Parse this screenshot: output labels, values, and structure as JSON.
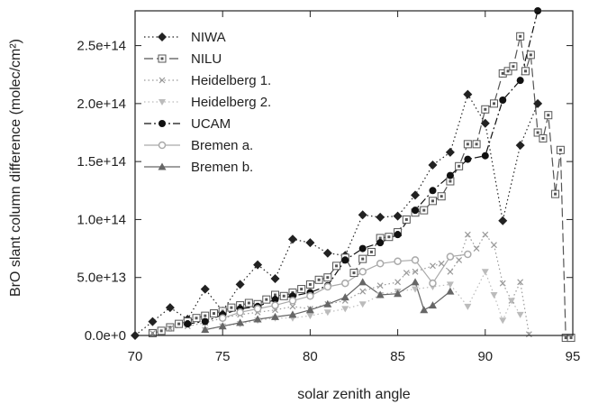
{
  "chart_data": {
    "type": "line",
    "xlabel": "solar zenith angle",
    "ylabel": "BrO slant column difference (molec/cm²)",
    "xlim": [
      70,
      95
    ],
    "ylim": [
      0,
      280000000000000.0
    ],
    "xticks": [
      70,
      75,
      80,
      85,
      90,
      95
    ],
    "xtick_labels": [
      "70",
      "75",
      "80",
      "85",
      "90",
      "95"
    ],
    "yticks": [
      0,
      50000000000000.0,
      100000000000000.0,
      150000000000000.0,
      200000000000000.0,
      250000000000000.0
    ],
    "ytick_labels": [
      "0.0e+0",
      "5.0e+13",
      "1.0e+14",
      "1.5e+14",
      "2.0e+14",
      "2.5e+14"
    ],
    "grid": false,
    "legend_position": "top-left",
    "series": [
      {
        "name": "NIWA",
        "color": "#222222",
        "marker": "diamond",
        "line": "dotted",
        "x": [
          70.0,
          71.0,
          72.0,
          73.0,
          74.0,
          75.0,
          76.0,
          77.0,
          78.0,
          79.0,
          80.0,
          81.0,
          82.0,
          83.0,
          84.0,
          85.0,
          86.0,
          87.0,
          88.0,
          89.0,
          90.0,
          91.0,
          92.0,
          93.0
        ],
        "y": [
          0.0,
          12000000000000.0,
          24000000000000.0,
          14000000000000.0,
          40000000000000.0,
          21000000000000.0,
          44000000000000.0,
          61000000000000.0,
          49000000000000.0,
          83000000000000.0,
          80000000000000.0,
          71000000000000.0,
          69000000000000.0,
          104000000000000.0,
          102000000000000.0,
          103000000000000.0,
          121000000000000.0,
          147000000000000.0,
          158000000000000.0,
          208000000000000.0,
          183000000000000.0,
          99000000000000.0,
          164000000000000.0,
          200000000000000.0
        ]
      },
      {
        "name": "NILU",
        "color": "#555555",
        "marker": "dotted-square",
        "line": "long-dash",
        "x": [
          71.0,
          71.5,
          72.0,
          72.5,
          73.0,
          73.5,
          74.0,
          74.5,
          75.0,
          75.5,
          76.0,
          76.5,
          77.0,
          77.5,
          78.0,
          78.5,
          79.0,
          79.5,
          80.0,
          80.5,
          81.0,
          81.5,
          82.0,
          82.5,
          83.0,
          83.5,
          84.0,
          84.5,
          85.0,
          85.5,
          86.0,
          86.5,
          87.0,
          87.5,
          88.0,
          88.5,
          89.0,
          89.5,
          90.0,
          90.5,
          91.0,
          91.3,
          91.6,
          92.0,
          92.3,
          92.6,
          93.0,
          93.3,
          93.6,
          94.0,
          94.3,
          94.6,
          94.9
        ],
        "y": [
          2000000000000.0,
          4000000000000.0,
          7000000000000.0,
          10000000000000.0,
          12000000000000.0,
          15000000000000.0,
          17000000000000.0,
          19000000000000.0,
          21000000000000.0,
          24000000000000.0,
          26000000000000.0,
          28000000000000.0,
          27000000000000.0,
          31000000000000.0,
          35000000000000.0,
          34000000000000.0,
          37000000000000.0,
          40000000000000.0,
          44000000000000.0,
          48000000000000.0,
          50000000000000.0,
          60000000000000.0,
          67000000000000.0,
          54000000000000.0,
          66000000000000.0,
          72000000000000.0,
          84000000000000.0,
          85000000000000.0,
          89000000000000.0,
          100000000000000.0,
          106000000000000.0,
          108000000000000.0,
          116000000000000.0,
          120000000000000.0,
          133000000000000.0,
          146000000000000.0,
          165000000000000.0,
          165000000000000.0,
          195000000000000.0,
          200000000000000.0,
          226000000000000.0,
          228000000000000.0,
          232000000000000.0,
          258000000000000.0,
          228000000000000.0,
          242000000000000.0,
          175000000000000.0,
          170000000000000.0,
          190000000000000.0,
          122000000000000.0,
          160000000000000.0,
          -2000000000000.0,
          -2000000000000.0
        ]
      },
      {
        "name": "Heidelberg 1.",
        "color": "#999999",
        "marker": "x",
        "line": "dotted",
        "x": [
          71.0,
          72.0,
          73.0,
          74.0,
          75.0,
          76.0,
          77.0,
          78.0,
          79.0,
          80.0,
          81.0,
          82.0,
          83.0,
          84.0,
          85.0,
          85.5,
          86.0,
          87.0,
          87.5,
          88.0,
          88.5,
          89.0,
          89.5,
          90.0,
          90.5,
          91.0,
          91.5,
          92.0,
          92.5
        ],
        "y": [
          2000000000000.0,
          6000000000000.0,
          8000000000000.0,
          11000000000000.0,
          15000000000000.0,
          18000000000000.0,
          20000000000000.0,
          22000000000000.0,
          25000000000000.0,
          23000000000000.0,
          27000000000000.0,
          30000000000000.0,
          38000000000000.0,
          43000000000000.0,
          46000000000000.0,
          54000000000000.0,
          55000000000000.0,
          60000000000000.0,
          62000000000000.0,
          55000000000000.0,
          65000000000000.0,
          87000000000000.0,
          75000000000000.0,
          87000000000000.0,
          78000000000000.0,
          45000000000000.0,
          30000000000000.0,
          46000000000000.0,
          1000000000000.0
        ]
      },
      {
        "name": "Heidelberg 2.",
        "color": "#bbbbbb",
        "marker": "triangle-down",
        "line": "dotted",
        "x": [
          74.0,
          75.0,
          76.0,
          77.0,
          78.0,
          79.0,
          80.0,
          81.0,
          82.0,
          83.0,
          84.0,
          85.0,
          86.0,
          87.0,
          88.0,
          89.0,
          90.0,
          90.5,
          91.0,
          91.5,
          92.0
        ],
        "y": [
          5000000000000.0,
          8000000000000.0,
          10000000000000.0,
          13000000000000.0,
          15000000000000.0,
          15000000000000.0,
          17000000000000.0,
          20000000000000.0,
          23000000000000.0,
          27000000000000.0,
          35000000000000.0,
          38000000000000.0,
          40000000000000.0,
          42000000000000.0,
          44000000000000.0,
          25000000000000.0,
          55000000000000.0,
          35000000000000.0,
          13000000000000.0,
          30000000000000.0,
          18000000000000.0
        ]
      },
      {
        "name": "UCAM",
        "color": "#111111",
        "marker": "circle",
        "line": "dash-dot",
        "x": [
          73.0,
          74.0,
          75.0,
          76.0,
          77.0,
          78.0,
          79.0,
          80.0,
          81.0,
          82.0,
          83.0,
          84.0,
          85.0,
          86.0,
          87.0,
          88.0,
          89.0,
          90.0,
          91.0,
          92.0,
          93.0
        ],
        "y": [
          10000000000000.0,
          12000000000000.0,
          18000000000000.0,
          23000000000000.0,
          25000000000000.0,
          31000000000000.0,
          34000000000000.0,
          37000000000000.0,
          43000000000000.0,
          65000000000000.0,
          75000000000000.0,
          80000000000000.0,
          87000000000000.0,
          108000000000000.0,
          125000000000000.0,
          138000000000000.0,
          152000000000000.0,
          155000000000000.0,
          203000000000000.0,
          220000000000000.0,
          280000000000000.0
        ]
      },
      {
        "name": "Bremen a.",
        "color": "#aaaaaa",
        "marker": "open-circle",
        "line": "solid",
        "x": [
          75.0,
          76.0,
          77.0,
          78.0,
          79.0,
          80.0,
          81.0,
          82.0,
          83.0,
          84.0,
          85.0,
          86.0,
          87.0,
          88.0,
          89.0
        ],
        "y": [
          15000000000000.0,
          20000000000000.0,
          23000000000000.0,
          26000000000000.0,
          30000000000000.0,
          34000000000000.0,
          42000000000000.0,
          45000000000000.0,
          55000000000000.0,
          62000000000000.0,
          64000000000000.0,
          65000000000000.0,
          45000000000000.0,
          68000000000000.0,
          70000000000000.0
        ]
      },
      {
        "name": "Bremen b.",
        "color": "#666666",
        "marker": "triangle-up",
        "line": "solid",
        "x": [
          74.0,
          75.0,
          76.0,
          77.0,
          78.0,
          79.0,
          80.0,
          81.0,
          82.0,
          83.0,
          84.0,
          85.0,
          86.0,
          86.5,
          87.0,
          88.0
        ],
        "y": [
          5000000000000.0,
          8000000000000.0,
          11000000000000.0,
          14000000000000.0,
          16000000000000.0,
          18000000000000.0,
          22000000000000.0,
          27000000000000.0,
          33000000000000.0,
          46000000000000.0,
          35000000000000.0,
          36000000000000.0,
          46000000000000.0,
          22000000000000.0,
          26000000000000.0,
          38000000000000.0
        ]
      }
    ]
  }
}
